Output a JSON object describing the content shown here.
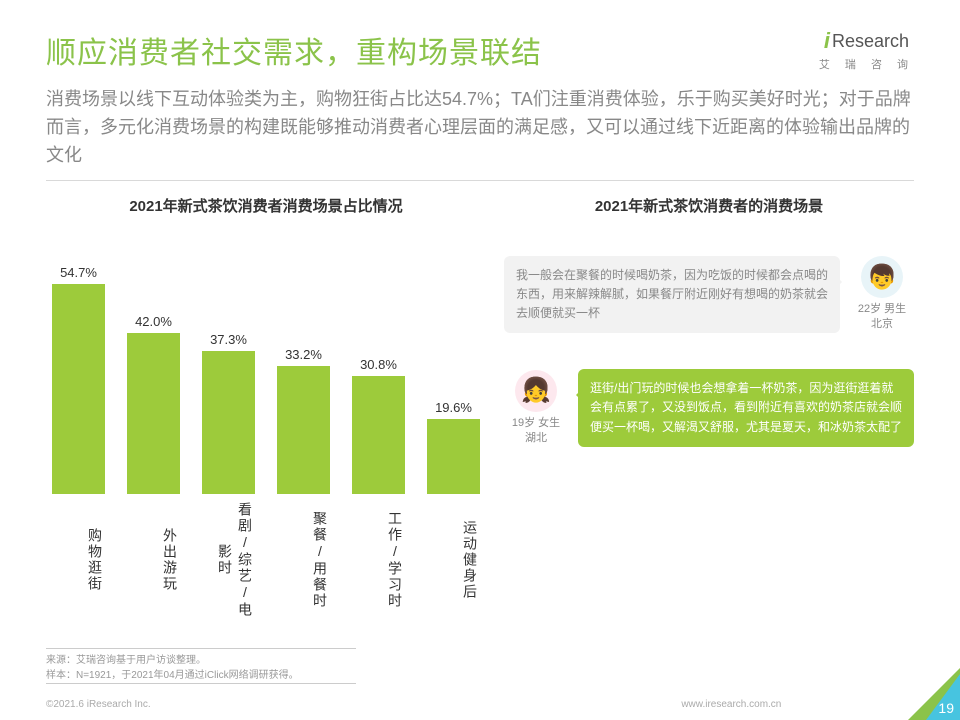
{
  "header": {
    "title": "顺应消费者社交需求，重构场景联结",
    "logo_text": "Research",
    "logo_i": "i",
    "logo_sub": "艾 瑞 咨 询"
  },
  "subtitle": "消费场景以线下互动体验类为主，购物狂街占比达54.7%；TA们注重消费体验，乐于购买美好时光；对于品牌而言，多元化消费场景的构建既能够推动消费者心理层面的满足感，又可以通过线下近距离的体验输出品牌的文化",
  "left_chart": {
    "type": "bar",
    "title": "2021年新式茶饮消费者消费场景占比情况",
    "categories": [
      "购物逛街",
      "外出游玩",
      "看剧/综艺/电影时",
      "聚餐/用餐时",
      "工作/学习时",
      "运动健身后"
    ],
    "values": [
      54.7,
      42.0,
      37.3,
      33.2,
      30.8,
      19.6
    ],
    "value_labels": [
      "54.7%",
      "42.0%",
      "37.3%",
      "33.2%",
      "30.8%",
      "19.6%"
    ],
    "bar_color": "#9dcb3b",
    "ylim_max": 60,
    "value_fontsize": 13,
    "label_fontsize": 14,
    "value_color": "#333333",
    "background": "#ffffff"
  },
  "right_section": {
    "title": "2021年新式茶饮消费者的消费场景",
    "quote1": {
      "text": "我一般会在聚餐的时候喝奶茶，因为吃饭的时候都会点喝的东西，用来解辣解腻，如果餐厅附近刚好有想喝的奶茶就会去顺便就买一杯",
      "bubble_bg": "#f2f2f2",
      "bubble_color": "#888888",
      "persona_line1": "22岁 男生",
      "persona_line2": "北京"
    },
    "quote2": {
      "text": "逛街/出门玩的时候也会想拿着一杯奶茶，因为逛街逛着就会有点累了，又没到饭点，看到附近有喜欢的奶茶店就会顺便买一杯喝，又解渴又舒服，尤其是夏天，和冰奶茶太配了",
      "bubble_bg": "#9dcb3b",
      "bubble_color": "#ffffff",
      "persona_line1": "19岁 女生",
      "persona_line2": "湖北"
    }
  },
  "footnotes": {
    "line1": "来源：艾瑞咨询基于用户访谈整理。",
    "line2": "样本：N=1921，于2021年04月通过iClick网络调研获得。"
  },
  "footer": {
    "copyright": "©2021.6 iResearch Inc.",
    "site": "www.iresearch.com.cn",
    "page_number": "19",
    "corner_green": "#8bc34a",
    "corner_blue": "#47c4e0"
  }
}
